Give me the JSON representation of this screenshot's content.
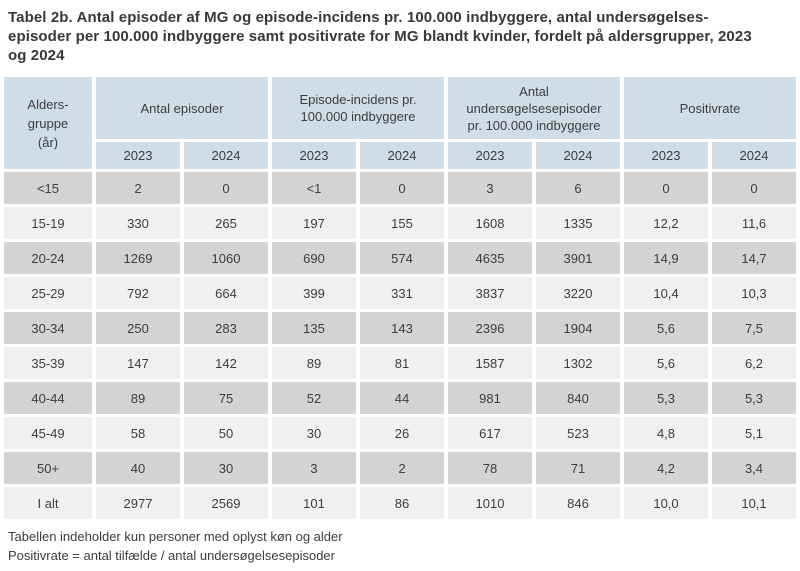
{
  "title": "Tabel 2b. Antal episoder af MG og episode-incidens pr. 100.000 indbyggere, antal undersøgelses-\nepisoder per 100.000 indbyggere samt positivrate for MG blandt kvinder, fordelt på aldersgrupper, 2023\nog 2024",
  "colors": {
    "header_bg": "#cfdde9",
    "row_dark": "#d3d3d3",
    "row_light": "#f0f0f0",
    "text": "#3d3d3d",
    "title_text": "#383838"
  },
  "table": {
    "age_group_header": "Alders-\ngruppe\n(år)",
    "group_headers": [
      "Antal episoder",
      "Episode-incidens pr.\n100.000 indbyggere",
      "Antal\nundersøgelsesepisoder\npr. 100.000 indbyggere",
      "Positivrate"
    ],
    "year_headers": [
      "2023",
      "2024",
      "2023",
      "2024",
      "2023",
      "2024",
      "2023",
      "2024"
    ],
    "rows": [
      {
        "group": "<15",
        "values": [
          "2",
          "0",
          "<1",
          "0",
          "3",
          "6",
          "0",
          "0"
        ]
      },
      {
        "group": "15-19",
        "values": [
          "330",
          "265",
          "197",
          "155",
          "1608",
          "1335",
          "12,2",
          "11,6"
        ]
      },
      {
        "group": "20-24",
        "values": [
          "1269",
          "1060",
          "690",
          "574",
          "4635",
          "3901",
          "14,9",
          "14,7"
        ]
      },
      {
        "group": "25-29",
        "values": [
          "792",
          "664",
          "399",
          "331",
          "3837",
          "3220",
          "10,4",
          "10,3"
        ]
      },
      {
        "group": "30-34",
        "values": [
          "250",
          "283",
          "135",
          "143",
          "2396",
          "1904",
          "5,6",
          "7,5"
        ]
      },
      {
        "group": "35-39",
        "values": [
          "147",
          "142",
          "89",
          "81",
          "1587",
          "1302",
          "5,6",
          "6,2"
        ]
      },
      {
        "group": "40-44",
        "values": [
          "89",
          "75",
          "52",
          "44",
          "981",
          "840",
          "5,3",
          "5,3"
        ]
      },
      {
        "group": "45-49",
        "values": [
          "58",
          "50",
          "30",
          "26",
          "617",
          "523",
          "4,8",
          "5,1"
        ]
      },
      {
        "group": "50+",
        "values": [
          "40",
          "30",
          "3",
          "2",
          "78",
          "71",
          "4,2",
          "3,4"
        ]
      },
      {
        "group": "I alt",
        "values": [
          "2977",
          "2569",
          "101",
          "86",
          "1010",
          "846",
          "10,0",
          "10,1"
        ]
      }
    ]
  },
  "footnotes": [
    "Tabellen indeholder kun personer med oplyst køn og alder",
    "Positivrate = antal tilfælde / antal undersøgelsesepisoder"
  ]
}
